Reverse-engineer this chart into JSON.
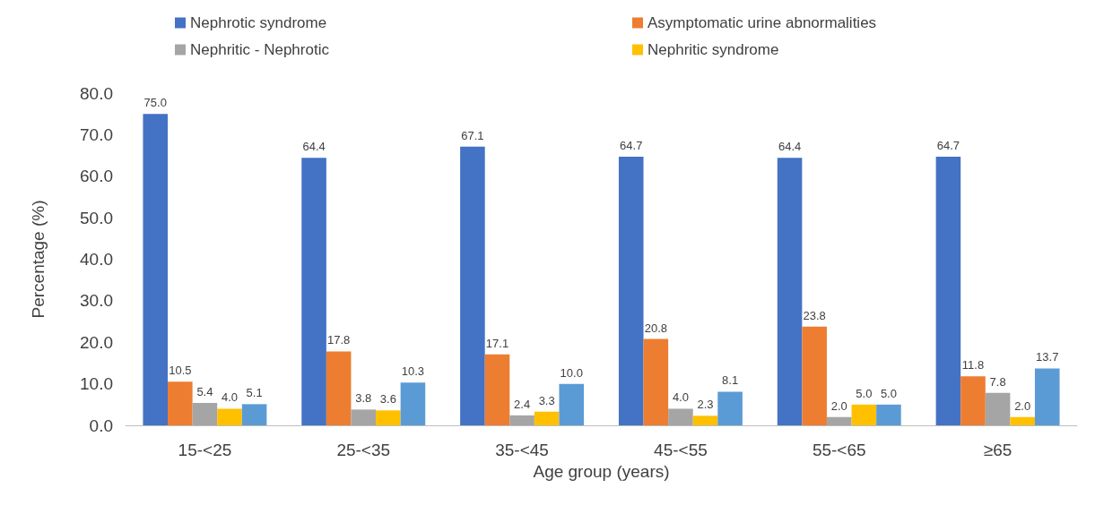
{
  "chart_data": {
    "type": "bar",
    "xlabel": "Age group (years)",
    "ylabel": "Percentage (%)",
    "categories": [
      "15-<25",
      "25-<35",
      "35-<45",
      "45-<55",
      "55-<65",
      "≥65"
    ],
    "series": [
      {
        "name": "Nephrotic syndrome",
        "color": "#4472c4",
        "values": [
          75.0,
          64.4,
          67.1,
          64.7,
          64.4,
          64.7
        ],
        "value_labels": [
          "75.0",
          "64.4",
          "67.1",
          "64.7",
          "64.4",
          "64.7"
        ]
      },
      {
        "name": "Asymptomatic urine abnormalities",
        "color": "#ed7d31",
        "values": [
          10.5,
          17.8,
          17.1,
          20.8,
          23.8,
          11.8
        ],
        "value_labels": [
          "10.5",
          "17.8",
          "17.1",
          "20.8",
          "23.8",
          "11.8"
        ]
      },
      {
        "name": "Nephritic - Nephrotic",
        "color": "#a5a5a5",
        "values": [
          5.4,
          3.8,
          2.4,
          4.0,
          2.0,
          7.8
        ],
        "value_labels": [
          "5.4",
          "3.8",
          "2.4",
          "4.0",
          "2.0",
          "7.8"
        ]
      },
      {
        "name": "Nephritic syndrome",
        "color": "#ffc000",
        "values": [
          4.0,
          3.6,
          3.3,
          2.3,
          5.0,
          2.0
        ],
        "value_labels": [
          "4.0",
          "3.6",
          "3.3",
          "2.3",
          "5.0",
          "2.0"
        ]
      },
      {
        "color": "#5b9bd5",
        "values": [
          5.1,
          10.3,
          10.0,
          8.1,
          5.0,
          13.7
        ],
        "value_labels": [
          "5.1",
          "10.3",
          "10.0",
          "8.1",
          "5.0",
          "13.7"
        ]
      }
    ],
    "ylim": [
      0,
      80
    ],
    "yticks": [
      {
        "value": 0,
        "label": "0.0"
      },
      {
        "value": 10,
        "label": "10.0"
      },
      {
        "value": 20,
        "label": "20.0"
      },
      {
        "value": 30,
        "label": "30.0"
      },
      {
        "value": 40,
        "label": "40.0"
      },
      {
        "value": 50,
        "label": "50.0"
      },
      {
        "value": 60,
        "label": "60.0"
      },
      {
        "value": 70,
        "label": "70.0"
      },
      {
        "value": 80,
        "label": "80.0"
      }
    ],
    "grid": false,
    "legend": "top"
  }
}
